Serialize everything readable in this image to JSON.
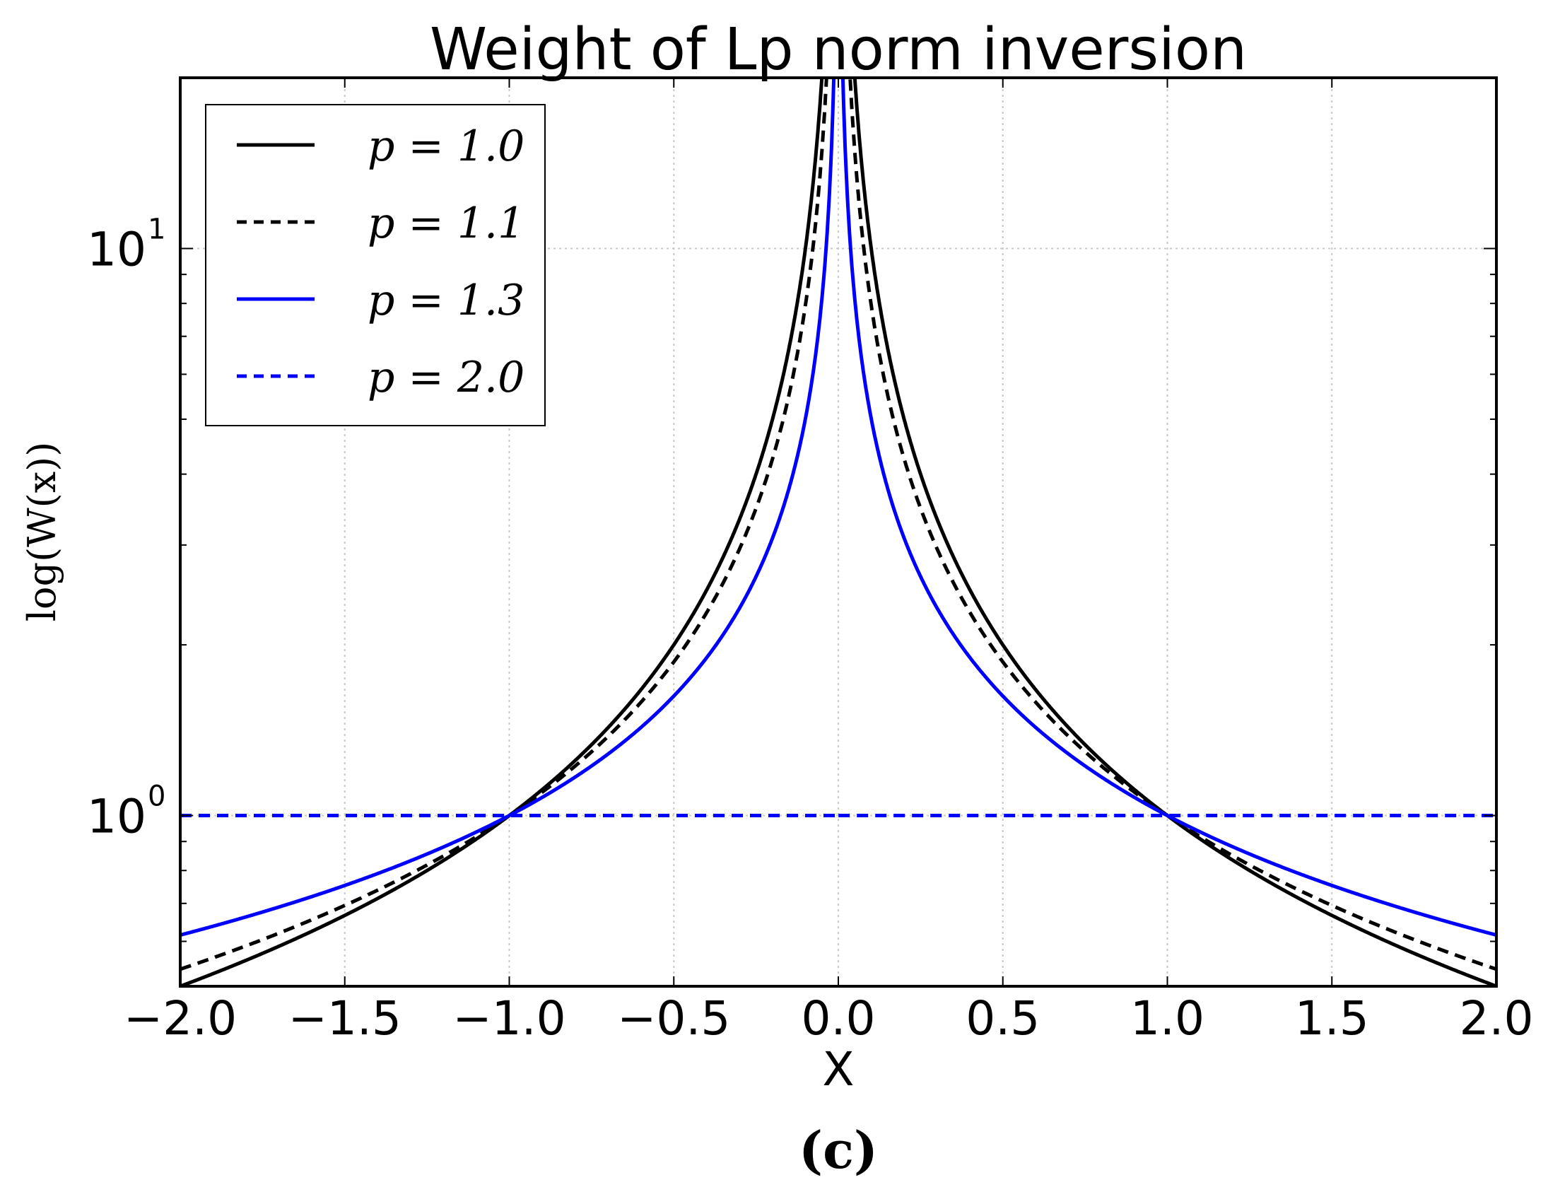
{
  "chart_data": {
    "type": "line",
    "title": "Weight of Lp norm inversion",
    "xlabel": "X",
    "ylabel": "log(W(x))",
    "panel_label": "(c)",
    "x_range": [
      -2.0,
      2.0
    ],
    "ylim": [
      0.5,
      20
    ],
    "y_scale": "log",
    "x_ticks": [
      "−2.0",
      "−1.5",
      "−1.0",
      "−0.5",
      "0.0",
      "0.5",
      "1.0",
      "1.5",
      "2.0"
    ],
    "y_ticks": [
      {
        "value": 10,
        "base": "10",
        "exp": "1"
      },
      {
        "value": 1,
        "base": "10",
        "exp": "0"
      }
    ],
    "grid": true,
    "legend_position": "top-left",
    "series": [
      {
        "name": "p = 1.0",
        "p": 1.0,
        "color": "#000000",
        "dash": "solid"
      },
      {
        "name": "p = 1.1",
        "p": 1.1,
        "color": "#000000",
        "dash": "dashed"
      },
      {
        "name": "p = 1.3",
        "p": 1.3,
        "color": "#0000ff",
        "dash": "solid"
      },
      {
        "name": "p = 2.0",
        "p": 2.0,
        "color": "#0000ff",
        "dash": "dashed"
      }
    ],
    "sample_points": [
      {
        "x": -2.0,
        "values": [
          0.5,
          0.54,
          0.59,
          1.0
        ]
      },
      {
        "x": -1.0,
        "values": [
          1.0,
          1.0,
          1.0,
          1.0
        ]
      },
      {
        "x": -0.5,
        "values": [
          2.0,
          1.86,
          1.62,
          1.0
        ]
      },
      {
        "x": -0.1,
        "values": [
          10.0,
          7.94,
          5.01,
          1.0
        ]
      },
      {
        "x": 0.1,
        "values": [
          10.0,
          7.94,
          5.01,
          1.0
        ]
      },
      {
        "x": 0.5,
        "values": [
          2.0,
          1.86,
          1.62,
          1.0
        ]
      },
      {
        "x": 1.0,
        "values": [
          1.0,
          1.0,
          1.0,
          1.0
        ]
      },
      {
        "x": 2.0,
        "values": [
          0.5,
          0.54,
          0.59,
          1.0
        ]
      }
    ]
  }
}
